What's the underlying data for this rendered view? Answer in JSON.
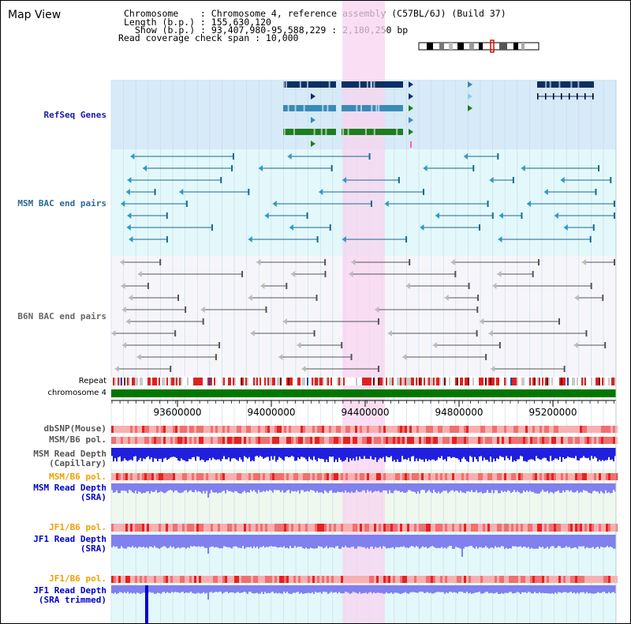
{
  "page": {
    "title": "Map View",
    "info": {
      "chromosome": "Chromosome    : Chromosome 4, reference assembly (C57BL/6J) (Build 37)",
      "length": "Length (b.p.) : 155,630,120",
      "show": "Show (b.p.) : 93,407,980-95,588,229 : 2,180,250 bp",
      "coverage": "Read coverage check span : 10,000"
    }
  },
  "colors": {
    "gene_bg": "#d6eaf8",
    "bac_bg": "#e3f8fa",
    "b6n_bg": "#f6f6fa",
    "highlight": "#f8d4f0",
    "refseq_label": "#1a1aa8",
    "msm_label": "#2a6a9a",
    "b6n_label": "#666666",
    "orange_label": "#f0a000",
    "blue_label": "#0000cc",
    "chrom_bar": "#007700",
    "depth_blue": "#1f1fdd",
    "depth_purple": "#8080ee"
  },
  "tracks": {
    "refseq_genes": "RefSeq Genes",
    "msm_bac": "MSM BAC end pairs",
    "b6n_bac": "B6N BAC end pairs",
    "repeat": "Repeat",
    "chromosome": "chromosome 4",
    "dbsnp": "dbSNP(Mouse)",
    "msm_b6_pol": "MSM/B6 pol.",
    "msm_read_depth_cap": "MSM Read Depth\n(Capillary)",
    "msm_b6_pol2": "MSM/B6 pol.",
    "msm_read_depth_sra": "MSM Read Depth\n(SRA)",
    "jf1_b6_pol": "JF1/B6 pol.",
    "jf1_read_depth_sra": "JF1 Read Depth\n(SRA)",
    "jf1_b6_pol2": "JF1/B6 pol.",
    "jf1_read_depth_trim": "JF1 Read Depth\n(SRA trimmed)"
  },
  "axis": {
    "ticks": [
      "93600000",
      "94000000",
      "94400000",
      "94800000",
      "95200000"
    ]
  }
}
